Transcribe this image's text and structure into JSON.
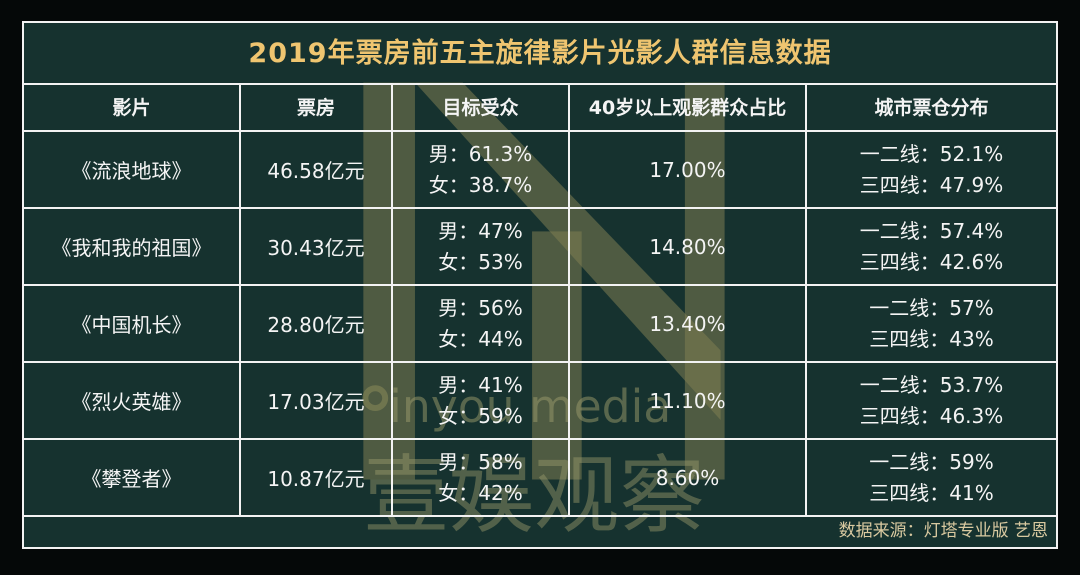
{
  "title": "2019年票房前五主旋律影片光影人群信息数据",
  "headers": [
    "影片",
    "票房",
    "目标受众",
    "40岁以上观影群众占比",
    "城市票仓分布"
  ],
  "rows": [
    {
      "film": "《流浪地球》",
      "box_office": "46.58亿元",
      "male": "男：61.3%",
      "female": "女：38.7%",
      "over40": "17.00%",
      "tier12": "一二线：52.1%",
      "tier34": "三四线：47.9%"
    },
    {
      "film": "《我和我的祖国》",
      "box_office": "30.43亿元",
      "male": "男：47%",
      "female": "女：53%",
      "over40": "14.80%",
      "tier12": "一二线：57.4%",
      "tier34": "三四线：42.6%"
    },
    {
      "film": "《中国机长》",
      "box_office": "28.80亿元",
      "male": "男：56%",
      "female": "女：44%",
      "over40": "13.40%",
      "tier12": "一二线：57%",
      "tier34": "三四线：43%"
    },
    {
      "film": "《烈火英雄》",
      "box_office": "17.03亿元",
      "male": "男：41%",
      "female": "女：59%",
      "over40": "11.10%",
      "tier12": "一二线：53.7%",
      "tier34": "三四线：46.3%"
    },
    {
      "film": "《攀登者》",
      "box_office": "10.87亿元",
      "male": "男：58%",
      "female": "女：42%",
      "over40": "8.60%",
      "tier12": "一二线：59%",
      "tier34": "三四线：41%"
    }
  ],
  "source": "数据来源：灯塔专业版 艺恩",
  "watermark": {
    "latin": "inyou media",
    "cjk": "壹娱观察"
  },
  "colors": {
    "background": "#16322f",
    "title": "#efc570",
    "border": "#f3f3f3",
    "watermark": "#8a8a5a"
  }
}
